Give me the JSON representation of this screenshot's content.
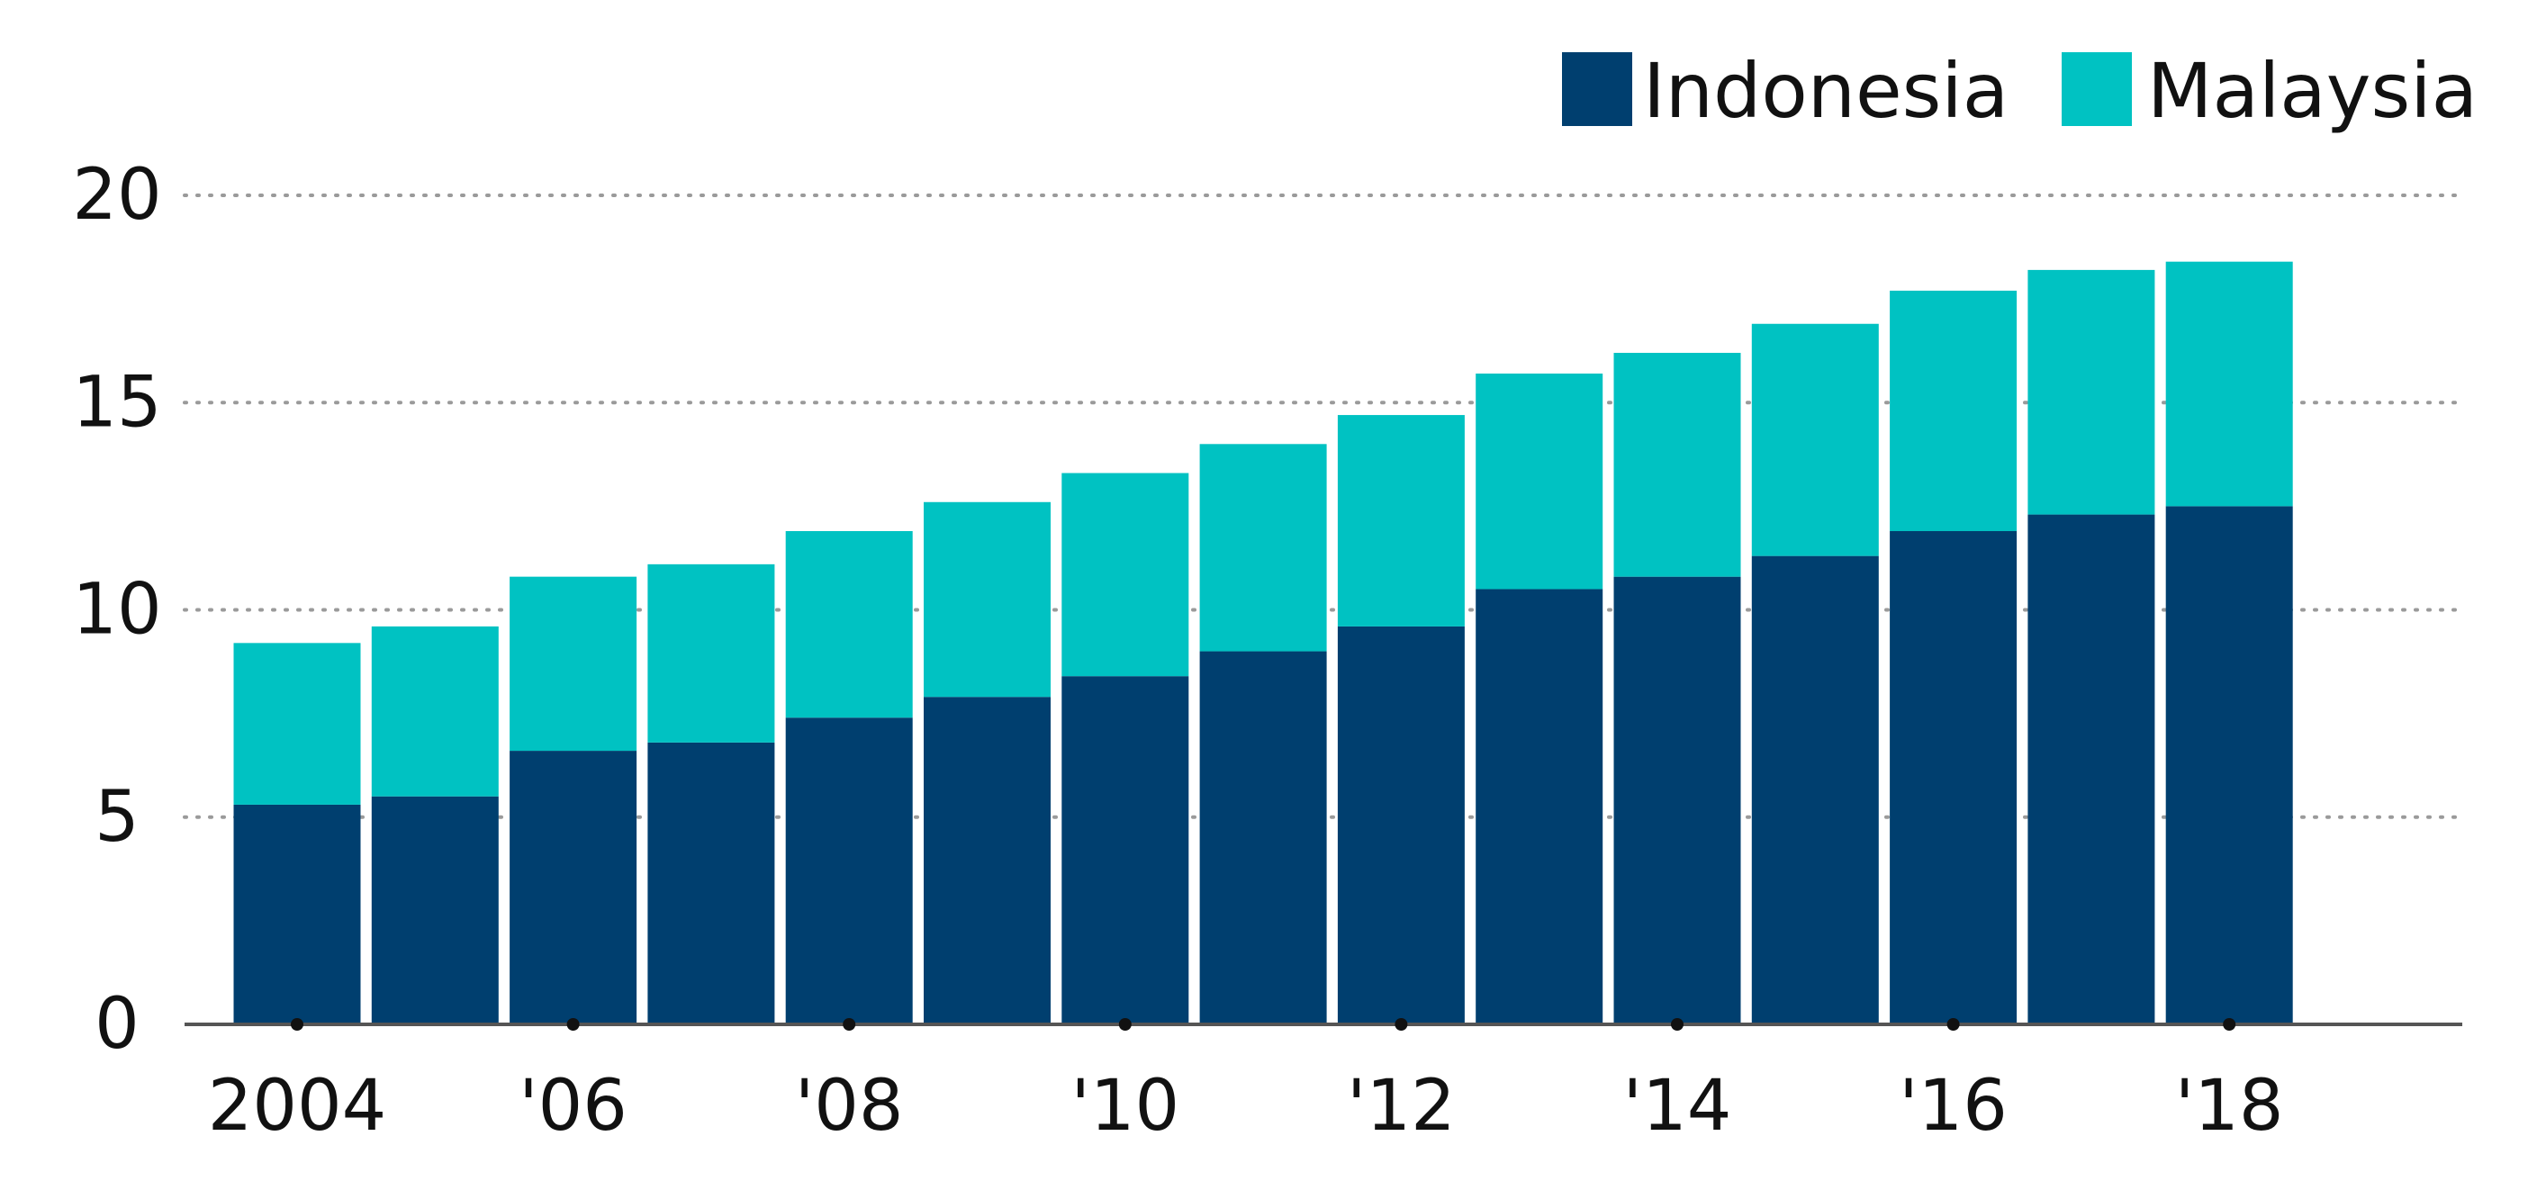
{
  "chart_data": {
    "type": "bar",
    "stacked": true,
    "categories": [
      "2004",
      "2005",
      "2006",
      "2007",
      "2008",
      "2009",
      "2010",
      "2011",
      "2012",
      "2013",
      "2014",
      "2015",
      "2016",
      "2017",
      "2018"
    ],
    "x_tick_labels": [
      "2004",
      "",
      "'06",
      "",
      "'08",
      "",
      "'10",
      "",
      "'12",
      "",
      "'14",
      "",
      "'16",
      "",
      "'18"
    ],
    "series": [
      {
        "name": "Indonesia",
        "color": "#003f6f",
        "values": [
          5.3,
          5.5,
          6.6,
          6.8,
          7.4,
          7.9,
          8.4,
          9.0,
          9.6,
          10.5,
          10.8,
          11.3,
          11.9,
          12.3,
          12.5
        ]
      },
      {
        "name": "Malaysia",
        "color": "#00c2c2",
        "values": [
          3.9,
          4.1,
          4.2,
          4.3,
          4.5,
          4.7,
          4.9,
          5.0,
          5.1,
          5.2,
          5.4,
          5.6,
          5.8,
          5.9,
          5.9
        ]
      }
    ],
    "y_ticks": [
      0,
      5,
      10,
      15,
      20
    ],
    "ylim": [
      0,
      21
    ],
    "grid": "dotted-horizontal",
    "legend_position": "top-right",
    "title": "",
    "xlabel": "",
    "ylabel": ""
  }
}
